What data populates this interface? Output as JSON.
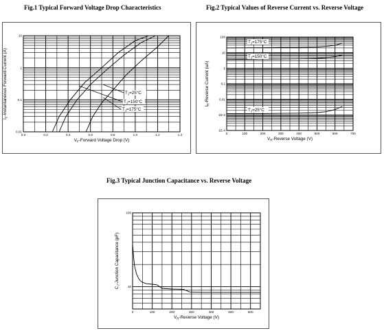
{
  "figures": [
    {
      "title": "Fig.1  Typical Forward Voltage Drop Characteristics"
    },
    {
      "title": "Fig.2  Typical Values of Reverse Current vs. Reverse Voltage"
    },
    {
      "title": "Fig.3  Typical Junction Capacitance vs. Reverse Voltage"
    }
  ],
  "chart_data": [
    {
      "type": "line",
      "title": "Fig.1  Typical Forward Voltage Drop Characteristics",
      "xlabel": "VF-Forward Voltage Drop (V)",
      "ylabel": "IF-Instantaneous Forward Current (A)",
      "xlim": [
        0.0,
        1.4
      ],
      "ylim": [
        0.01,
        10
      ],
      "yscale": "log",
      "grid": true,
      "x_ticks": [
        "0.0",
        "0.2",
        "0.4",
        "0.6",
        "0.8",
        "1.0",
        "1.2",
        "1.4"
      ],
      "y_ticks": [
        "0.01",
        "0.1",
        "1",
        "10"
      ],
      "series": [
        {
          "name": "TJ=25°C",
          "x": [
            0.56,
            0.62,
            0.7,
            0.8,
            0.92,
            1.05,
            1.2,
            1.3
          ],
          "y": [
            0.01,
            0.03,
            0.08,
            0.2,
            0.6,
            1.6,
            4.5,
            10
          ]
        },
        {
          "name": "TJ=150°C",
          "x": [
            0.32,
            0.38,
            0.48,
            0.6,
            0.75,
            0.9,
            1.05,
            1.18
          ],
          "y": [
            0.01,
            0.03,
            0.1,
            0.3,
            0.9,
            2.5,
            6,
            10
          ]
        },
        {
          "name": "TJ=175°C",
          "x": [
            0.26,
            0.32,
            0.42,
            0.55,
            0.7,
            0.85,
            1.0,
            1.12
          ],
          "y": [
            0.01,
            0.03,
            0.1,
            0.35,
            1.0,
            3.0,
            7,
            10
          ]
        }
      ],
      "annotations": [
        "TJ=25°C",
        "TJ=150°C",
        "TJ=175°C"
      ]
    },
    {
      "type": "line",
      "title": "Fig.2  Typical Values of Reverse Current vs. Reverse Voltage",
      "xlabel": "VR-Reverse Voltage (V)",
      "ylabel": "IR-Reverse Current (uA)",
      "xlim": [
        0,
        700
      ],
      "ylim": [
        0.0001,
        100
      ],
      "yscale": "log",
      "grid": true,
      "x_ticks": [
        "0",
        "100",
        "200",
        "300",
        "400",
        "500",
        "600",
        "700"
      ],
      "y_ticks": [
        "1E-4",
        "1E-3",
        "0.01",
        "0.1",
        "1",
        "10",
        "100"
      ],
      "series": [
        {
          "name": "TJ=175°C",
          "x": [
            0,
            100,
            200,
            300,
            400,
            500,
            550,
            600,
            640
          ],
          "y": [
            20,
            20.5,
            21,
            21.5,
            22,
            23,
            25,
            30,
            40
          ]
        },
        {
          "name": "TJ=150°C",
          "x": [
            0,
            100,
            200,
            300,
            400,
            500,
            550,
            600,
            640
          ],
          "y": [
            3.6,
            3.7,
            3.8,
            3.9,
            4.0,
            4.3,
            4.7,
            5.5,
            7
          ]
        },
        {
          "name": "TJ=25°C",
          "x": [
            0,
            100,
            200,
            300,
            400,
            500,
            550,
            600,
            640
          ],
          "y": [
            0.0012,
            0.0012,
            0.0012,
            0.00125,
            0.0013,
            0.0014,
            0.0016,
            0.0022,
            0.0035
          ]
        }
      ],
      "annotations": [
        "TJ=175°C",
        "TJ=150°C",
        "TJ=25°C"
      ]
    },
    {
      "type": "line",
      "title": "Fig.3  Typical Junction Capacitance vs. Reverse Voltage",
      "xlabel": "VR-Reverse Voltage (V)",
      "ylabel": "CJ-Junction Capacitance (pF)",
      "xlim": [
        0,
        650
      ],
      "ylim": [
        5,
        100
      ],
      "yscale": "log",
      "grid": true,
      "x_ticks": [
        "0",
        "100",
        "200",
        "300",
        "400",
        "500",
        "600"
      ],
      "y_ticks": [
        "10",
        "100"
      ],
      "series": [
        {
          "name": "",
          "x": [
            0,
            5,
            10,
            20,
            30,
            40,
            50,
            70,
            100,
            125,
            150,
            200,
            260,
            290,
            350,
            450,
            550,
            650
          ],
          "y": [
            38,
            26,
            19,
            15,
            13,
            12,
            11.5,
            11,
            10.8,
            10.6,
            9.5,
            9.3,
            9.2,
            8.5,
            8.4,
            8.4,
            8.4,
            8.4
          ]
        }
      ]
    }
  ]
}
